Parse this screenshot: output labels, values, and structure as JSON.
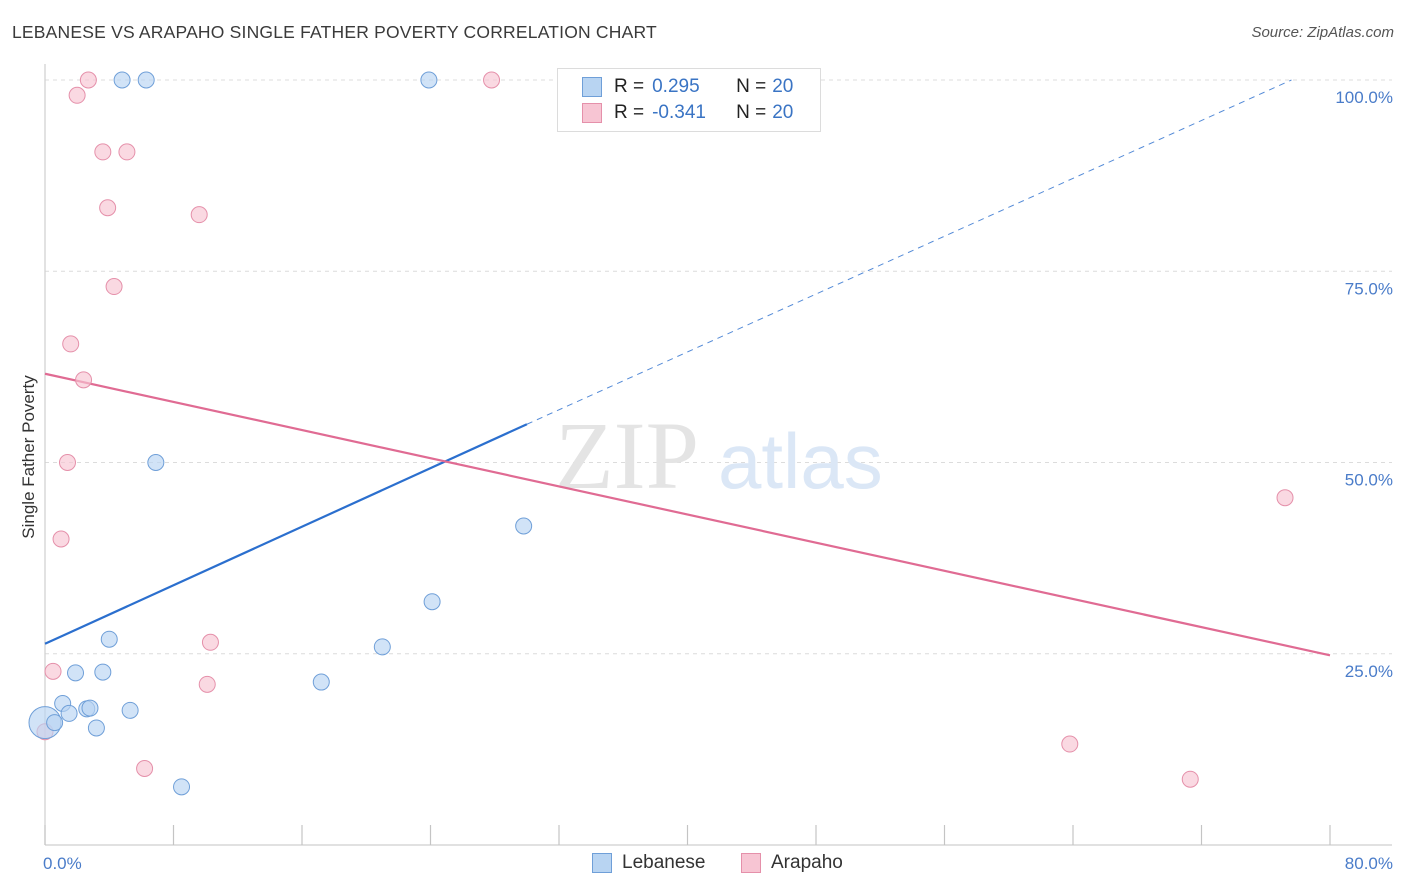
{
  "title": "LEBANESE VS ARAPAHO SINGLE FATHER POVERTY CORRELATION CHART",
  "source": "Source: ZipAtlas.com",
  "watermark": {
    "zip": "ZIP",
    "atlas": "atlas"
  },
  "legend": {
    "rows": [
      {
        "r_label": "R =",
        "r_value": "0.295",
        "n_label": "N =",
        "n_value": "20"
      },
      {
        "r_label": "R =",
        "r_value": "-0.341",
        "n_label": "N =",
        "n_value": "20"
      }
    ]
  },
  "bottom_legend": {
    "lebanese": "Lebanese",
    "arapaho": "Arapaho"
  },
  "colors": {
    "lebanese_fill": "#b8d4f2",
    "lebanese_stroke": "#6f9fd8",
    "lebanese_line": "#2b6fce",
    "arapaho_fill": "#f7c5d3",
    "arapaho_stroke": "#e590aa",
    "arapaho_line": "#e06b93",
    "tick": "#4a7cc9",
    "grid": "#dcdcdc"
  },
  "chart_data": {
    "type": "scatter",
    "title": "LEBANESE VS ARAPAHO SINGLE FATHER POVERTY CORRELATION CHART",
    "xlabel": "",
    "ylabel": "Single Father Poverty",
    "xlim": [
      0,
      80
    ],
    "ylim": [
      0,
      105
    ],
    "x_tick_labels": [
      "0.0%",
      "80.0%"
    ],
    "y_ticks": [
      25,
      50,
      75,
      100
    ],
    "y_tick_labels": [
      "25.0%",
      "50.0%",
      "75.0%",
      "100.0%"
    ],
    "series": [
      {
        "name": "Lebanese",
        "r": 0.295,
        "n": 20,
        "points": [
          {
            "x": 0.0,
            "y": 16.0
          },
          {
            "x": 0.6,
            "y": 16.0
          },
          {
            "x": 1.1,
            "y": 18.5
          },
          {
            "x": 1.5,
            "y": 17.2
          },
          {
            "x": 1.9,
            "y": 22.5
          },
          {
            "x": 2.6,
            "y": 17.8
          },
          {
            "x": 2.8,
            "y": 17.9
          },
          {
            "x": 3.2,
            "y": 15.3
          },
          {
            "x": 3.6,
            "y": 22.6
          },
          {
            "x": 4.0,
            "y": 26.9
          },
          {
            "x": 5.3,
            "y": 17.6
          },
          {
            "x": 4.8,
            "y": 100.0
          },
          {
            "x": 6.3,
            "y": 100.0
          },
          {
            "x": 6.9,
            "y": 50.0
          },
          {
            "x": 8.5,
            "y": 7.6
          },
          {
            "x": 17.2,
            "y": 21.3
          },
          {
            "x": 21.0,
            "y": 25.9
          },
          {
            "x": 23.9,
            "y": 100.0
          },
          {
            "x": 24.1,
            "y": 31.8
          },
          {
            "x": 29.8,
            "y": 41.7
          }
        ],
        "trend": {
          "x0": 0,
          "y0": 26.3,
          "x1": 30,
          "y1": 55.0,
          "dashed_to_x": 77.6,
          "dashed_to_y": 100.0
        }
      },
      {
        "name": "Arapaho",
        "r": -0.341,
        "n": 20,
        "points": [
          {
            "x": 0.0,
            "y": 14.8
          },
          {
            "x": 0.5,
            "y": 22.7
          },
          {
            "x": 1.0,
            "y": 40.0
          },
          {
            "x": 1.4,
            "y": 50.0
          },
          {
            "x": 1.6,
            "y": 65.5
          },
          {
            "x": 2.0,
            "y": 98.0
          },
          {
            "x": 2.4,
            "y": 60.8
          },
          {
            "x": 2.7,
            "y": 100.0
          },
          {
            "x": 3.6,
            "y": 90.6
          },
          {
            "x": 3.9,
            "y": 83.3
          },
          {
            "x": 4.3,
            "y": 73.0
          },
          {
            "x": 5.1,
            "y": 90.6
          },
          {
            "x": 6.2,
            "y": 10.0
          },
          {
            "x": 9.6,
            "y": 82.4
          },
          {
            "x": 10.1,
            "y": 21.0
          },
          {
            "x": 10.3,
            "y": 26.5
          },
          {
            "x": 27.8,
            "y": 100.0
          },
          {
            "x": 63.8,
            "y": 13.2
          },
          {
            "x": 71.3,
            "y": 8.6
          },
          {
            "x": 77.2,
            "y": 45.4
          }
        ],
        "trend": {
          "x0": 0,
          "y0": 61.6,
          "x1": 80,
          "y1": 24.8
        }
      }
    ]
  }
}
